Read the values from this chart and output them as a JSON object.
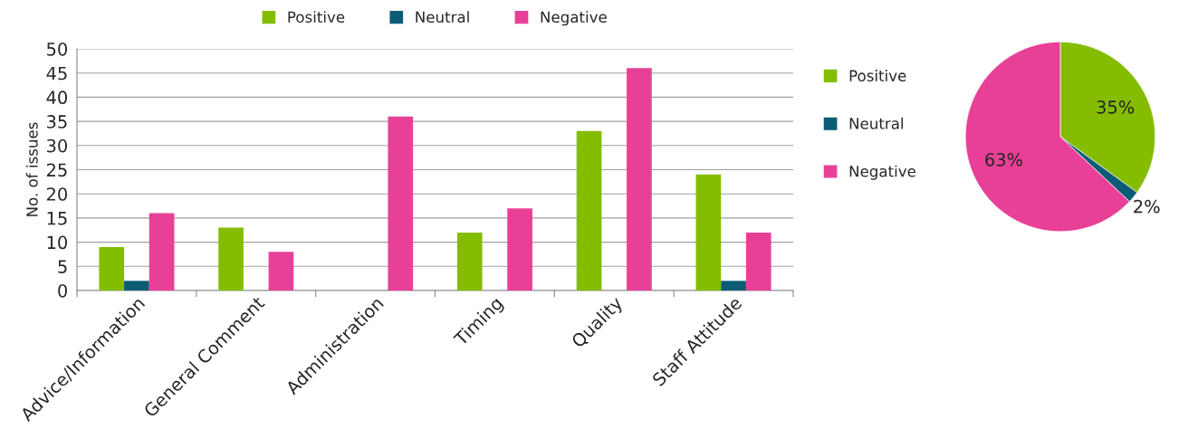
{
  "chart_data": [
    {
      "type": "bar",
      "ylabel": "No. of issues",
      "categories": [
        "Advice/Information",
        "General Comment",
        "Administration",
        "Timing",
        "Quality",
        "Staff Attitude"
      ],
      "series": [
        {
          "name": "Positive",
          "color": "#84bd00",
          "values": [
            9,
            13,
            null,
            12,
            33,
            24
          ]
        },
        {
          "name": "Neutral",
          "color": "#0d5c75",
          "values": [
            2,
            null,
            null,
            null,
            null,
            2
          ]
        },
        {
          "name": "Negative",
          "color": "#e84097",
          "values": [
            16,
            8,
            36,
            17,
            46,
            12
          ]
        }
      ],
      "ylim": [
        0,
        50
      ],
      "yticks": [
        0,
        5,
        10,
        15,
        20,
        25,
        30,
        35,
        40,
        45,
        50
      ],
      "grid": "y",
      "legend": "top"
    },
    {
      "type": "pie",
      "categories": [
        "Positive",
        "Neutral",
        "Negative"
      ],
      "values": [
        35,
        2,
        63
      ],
      "colors": [
        "#84bd00",
        "#0d5c75",
        "#e84097"
      ],
      "value_labels": [
        "35%",
        "2%",
        "63%"
      ],
      "legend": "left"
    }
  ]
}
